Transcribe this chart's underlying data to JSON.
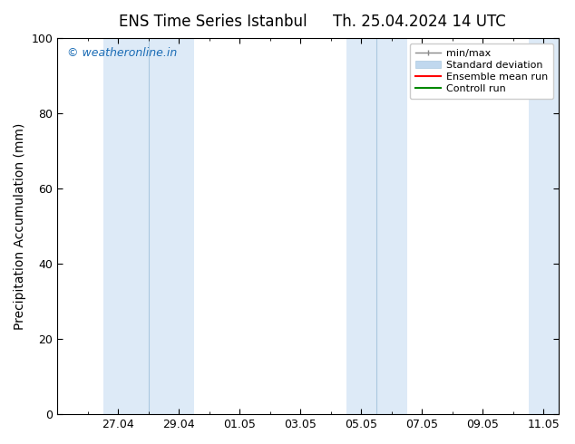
{
  "title_left": "ENS Time Series Istanbul",
  "title_right": "Th. 25.04.2024 14 UTC",
  "ylabel": "Precipitation Accumulation (mm)",
  "ylim": [
    0,
    100
  ],
  "yticks": [
    0,
    20,
    40,
    60,
    80,
    100
  ],
  "background_color": "#ffffff",
  "plot_bg_color": "#ffffff",
  "watermark_text": "© weatheronline.in",
  "watermark_color": "#1a6cb5",
  "shade_color": "#ddeaf7",
  "shade_line_color": "#aac8e0",
  "x_tick_labels": [
    "27.04",
    "29.04",
    "01.05",
    "03.05",
    "05.05",
    "07.05",
    "09.05",
    "11.05"
  ],
  "x_tick_positions": [
    2,
    4,
    6,
    8,
    10,
    12,
    14,
    16
  ],
  "xlim": [
    0.0,
    16.5
  ],
  "shade_regions": [
    [
      1.0,
      2.0
    ],
    [
      2.0,
      3.0
    ],
    [
      3.0,
      4.0
    ],
    [
      4.0,
      4.8
    ],
    [
      9.0,
      10.0
    ],
    [
      10.0,
      11.0
    ],
    [
      15.8,
      16.5
    ]
  ],
  "shade_dividers": [
    2.0,
    3.0,
    10.0
  ],
  "legend_labels": [
    "min/max",
    "Standard deviation",
    "Ensemble mean run",
    "Controll run"
  ],
  "legend_colors": [
    "#888888",
    "#c0d8ee",
    "#ff0000",
    "#008800"
  ],
  "title_fontsize": 12,
  "tick_fontsize": 9,
  "label_fontsize": 10
}
